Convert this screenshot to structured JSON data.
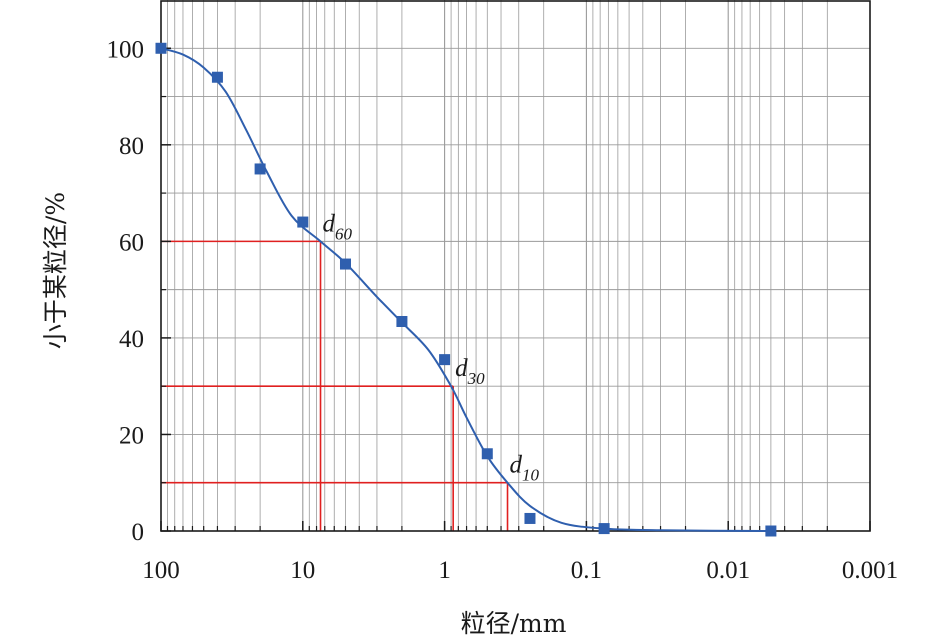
{
  "chart_data": {
    "type": "scatter",
    "xlabel": "粒径/mm",
    "ylabel": "小于某粒径/%",
    "x_scale": "log",
    "x_reversed": true,
    "xlim": [
      100,
      0.001
    ],
    "ylim": [
      0,
      110
    ],
    "x_ticks": [
      100,
      10,
      1,
      0.1,
      0.01,
      0.001
    ],
    "x_tick_labels": [
      "100",
      "10",
      "1",
      "0.1",
      "0.01",
      "0.001"
    ],
    "y_ticks": [
      0,
      20,
      40,
      60,
      80,
      100
    ],
    "y_tick_labels": [
      "0",
      "20",
      "40",
      "60",
      "80",
      "100"
    ],
    "grid": true,
    "colors": {
      "marker": "#2f5fae",
      "curve": "#2f5fae",
      "reference": "#e02020",
      "grid": "#9a9a9a"
    },
    "points": [
      {
        "x": 100,
        "y": 100
      },
      {
        "x": 40,
        "y": 94
      },
      {
        "x": 20,
        "y": 75
      },
      {
        "x": 10,
        "y": 64
      },
      {
        "x": 5,
        "y": 55.3
      },
      {
        "x": 2,
        "y": 43.4
      },
      {
        "x": 1,
        "y": 35.5
      },
      {
        "x": 0.5,
        "y": 16
      },
      {
        "x": 0.25,
        "y": 2.6
      },
      {
        "x": 0.075,
        "y": 0.5
      },
      {
        "x": 0.005,
        "y": 0
      }
    ],
    "curve": [
      {
        "x": 100,
        "y": 100
      },
      {
        "x": 70,
        "y": 98.7
      },
      {
        "x": 50,
        "y": 96
      },
      {
        "x": 35,
        "y": 91
      },
      {
        "x": 25,
        "y": 83
      },
      {
        "x": 18,
        "y": 74.5
      },
      {
        "x": 12,
        "y": 65.3
      },
      {
        "x": 7.5,
        "y": 60
      },
      {
        "x": 5,
        "y": 55.5
      },
      {
        "x": 3,
        "y": 48.5
      },
      {
        "x": 2,
        "y": 43.2
      },
      {
        "x": 1.3,
        "y": 37.5
      },
      {
        "x": 0.9,
        "y": 30
      },
      {
        "x": 0.7,
        "y": 23.5
      },
      {
        "x": 0.5,
        "y": 15.5
      },
      {
        "x": 0.36,
        "y": 10
      },
      {
        "x": 0.25,
        "y": 5.2
      },
      {
        "x": 0.15,
        "y": 1.7
      },
      {
        "x": 0.075,
        "y": 0.5
      },
      {
        "x": 0.03,
        "y": 0.15
      },
      {
        "x": 0.005,
        "y": 0
      }
    ],
    "references": [
      {
        "label": "d",
        "sub": "60",
        "x": 7.5,
        "y": 60
      },
      {
        "label": "d",
        "sub": "30",
        "x": 0.87,
        "y": 30
      },
      {
        "label": "d",
        "sub": "10",
        "x": 0.36,
        "y": 10
      }
    ]
  }
}
